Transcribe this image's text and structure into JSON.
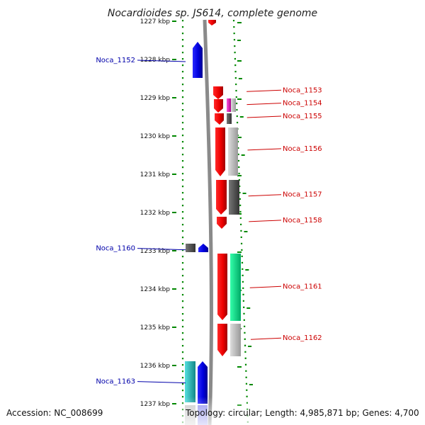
{
  "title": "Nocardioides sp. JS614, complete genome",
  "accession_text": "Accession: NC_008699",
  "topology_text": "Topology: circular; Length: 4,985,871 bp; Genes: 4,700",
  "ticks": [
    {
      "label": "1227 kbp",
      "kbp": 1227
    },
    {
      "label": "1228 kbp",
      "kbp": 1228
    },
    {
      "label": "1229 kbp",
      "kbp": 1229
    },
    {
      "label": "1230 kbp",
      "kbp": 1230
    },
    {
      "label": "1231 kbp",
      "kbp": 1231
    },
    {
      "label": "1232 kbp",
      "kbp": 1232
    },
    {
      "label": "1233 kbp",
      "kbp": 1233
    },
    {
      "label": "1234 kbp",
      "kbp": 1234
    },
    {
      "label": "1235 kbp",
      "kbp": 1235
    },
    {
      "label": "1236 kbp",
      "kbp": 1236
    },
    {
      "label": "1237 kbp",
      "kbp": 1237
    }
  ],
  "labels_left": [
    {
      "name": "Noca_1152",
      "kbp": 1228.0
    },
    {
      "name": "Noca_1160",
      "kbp": 1232.92
    },
    {
      "name": "Noca_1163",
      "kbp": 1236.4
    }
  ],
  "labels_right": [
    {
      "name": "Noca_1153",
      "kbp": 1228.82
    },
    {
      "name": "Noca_1154",
      "kbp": 1229.16
    },
    {
      "name": "Noca_1155",
      "kbp": 1229.5
    },
    {
      "name": "Noca_1156",
      "kbp": 1230.35
    },
    {
      "name": "Noca_1157",
      "kbp": 1231.55
    },
    {
      "name": "Noca_1158",
      "kbp": 1232.22
    },
    {
      "name": "Noca_1161",
      "kbp": 1233.95
    },
    {
      "name": "Noca_1162",
      "kbp": 1235.3
    }
  ],
  "colors": {
    "forward_cds": "#ee0000",
    "reverse_cds": "#0000dd",
    "backbone": "#888888",
    "tick_green": "#008800",
    "teal": "#22cccc",
    "green": "#11ee99",
    "magenta": "#ee22cc",
    "light_gray": "#bbbbbb",
    "dark_gray": "#555555"
  }
}
